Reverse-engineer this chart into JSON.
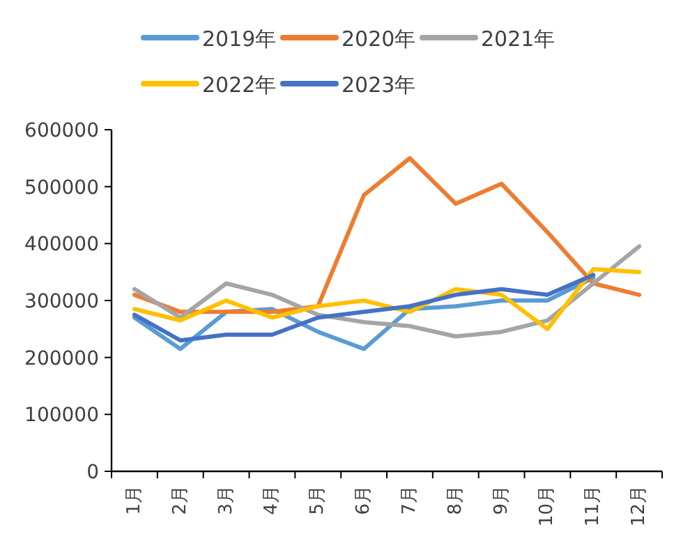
{
  "chart_data": {
    "type": "line",
    "categories": [
      "1月",
      "2月",
      "3月",
      "4月",
      "5月",
      "6月",
      "7月",
      "8月",
      "9月",
      "10月",
      "11月",
      "12月"
    ],
    "series": [
      {
        "name": "2019年",
        "color": "#5b9bd5",
        "values": [
          270000,
          215000,
          280000,
          285000,
          245000,
          215000,
          285000,
          290000,
          300000,
          300000,
          340000,
          null
        ]
      },
      {
        "name": "2020年",
        "color": "#ed7d31",
        "values": [
          310000,
          280000,
          280000,
          280000,
          290000,
          485000,
          550000,
          470000,
          505000,
          420000,
          330000,
          310000
        ]
      },
      {
        "name": "2021年",
        "color": "#a5a5a5",
        "values": [
          320000,
          270000,
          330000,
          310000,
          275000,
          262000,
          255000,
          237000,
          245000,
          265000,
          330000,
          395000
        ]
      },
      {
        "name": "2022年",
        "color": "#ffc000",
        "values": [
          285000,
          265000,
          300000,
          270000,
          290000,
          300000,
          280000,
          320000,
          310000,
          250000,
          355000,
          350000
        ]
      },
      {
        "name": "2023年",
        "color": "#4472c4",
        "values": [
          275000,
          230000,
          240000,
          240000,
          270000,
          280000,
          290000,
          310000,
          320000,
          310000,
          345000,
          null
        ]
      }
    ],
    "ylim": [
      0,
      600000
    ],
    "yticks": [
      0,
      100000,
      200000,
      300000,
      400000,
      500000,
      600000
    ],
    "legend": "top",
    "grid": false,
    "marker": "none",
    "line_style": "solid"
  }
}
